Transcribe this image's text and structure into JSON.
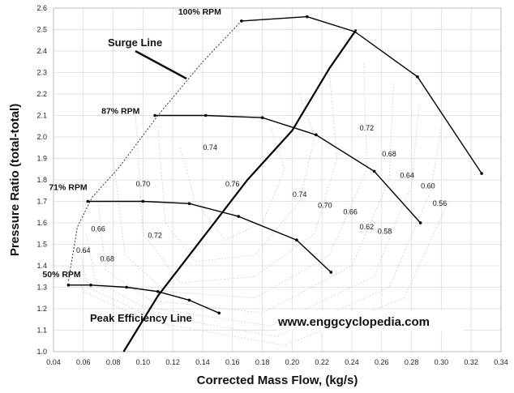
{
  "chart_data": {
    "type": "line",
    "xlabel": "Corrected Mass Flow, (kg/s)",
    "ylabel": "Pressure Ratio (total-total)",
    "xlim": [
      0.04,
      0.34
    ],
    "ylim": [
      1.0,
      2.6
    ],
    "x_ticks": [
      "0.04",
      "0.06",
      "0.08",
      "0.10",
      "0.12",
      "0.14",
      "0.16",
      "0.18",
      "0.20",
      "0.22",
      "0.24",
      "0.26",
      "0.28",
      "0.30",
      "0.32",
      "0.34"
    ],
    "y_ticks": [
      "1.0",
      "1.1",
      "1.2",
      "1.3",
      "1.4",
      "1.5",
      "1.6",
      "1.7",
      "1.8",
      "1.9",
      "2.0",
      "2.1",
      "2.2",
      "2.3",
      "2.4",
      "2.5",
      "2.6"
    ],
    "grid": true,
    "speed_lines": [
      {
        "name": "100% RPM",
        "x": [
          0.166,
          0.21,
          0.242,
          0.284,
          0.327
        ],
        "y": [
          2.54,
          2.56,
          2.49,
          2.28,
          1.83
        ]
      },
      {
        "name": "87% RPM",
        "x": [
          0.108,
          0.142,
          0.18,
          0.216,
          0.255,
          0.286
        ],
        "y": [
          2.1,
          2.1,
          2.09,
          2.01,
          1.84,
          1.6
        ]
      },
      {
        "name": "71% RPM",
        "x": [
          0.063,
          0.1,
          0.131,
          0.164,
          0.203,
          0.226
        ],
        "y": [
          1.7,
          1.7,
          1.69,
          1.63,
          1.52,
          1.37
        ]
      },
      {
        "name": "50% RPM",
        "x": [
          0.05,
          0.065,
          0.089,
          0.11,
          0.131,
          0.151
        ],
        "y": [
          1.31,
          1.31,
          1.3,
          1.28,
          1.24,
          1.18
        ]
      }
    ],
    "surge_line": {
      "x": [
        0.05,
        0.056,
        0.066,
        0.083,
        0.11,
        0.14,
        0.166
      ],
      "y": [
        1.33,
        1.58,
        1.72,
        1.85,
        2.1,
        2.35,
        2.54
      ]
    },
    "peak_efficiency_line": {
      "x": [
        0.087,
        0.11,
        0.14,
        0.17,
        0.2,
        0.225,
        0.243
      ],
      "y": [
        1.0,
        1.26,
        1.53,
        1.8,
        2.03,
        2.32,
        2.5
      ]
    },
    "efficiency_contour_labels": [
      {
        "text": "0.74",
        "x": 0.145,
        "y": 1.94
      },
      {
        "text": "0.70",
        "x": 0.1,
        "y": 1.77
      },
      {
        "text": "0.76",
        "x": 0.16,
        "y": 1.77
      },
      {
        "text": "0.74",
        "x": 0.205,
        "y": 1.72
      },
      {
        "text": "0.72",
        "x": 0.25,
        "y": 2.03
      },
      {
        "text": "0.68",
        "x": 0.265,
        "y": 1.91
      },
      {
        "text": "0.64",
        "x": 0.277,
        "y": 1.81
      },
      {
        "text": "0.60",
        "x": 0.291,
        "y": 1.76
      },
      {
        "text": "0.56",
        "x": 0.299,
        "y": 1.68
      },
      {
        "text": "0.70",
        "x": 0.222,
        "y": 1.67
      },
      {
        "text": "0.66",
        "x": 0.239,
        "y": 1.64
      },
      {
        "text": "0.62",
        "x": 0.25,
        "y": 1.57
      },
      {
        "text": "0.58",
        "x": 0.262,
        "y": 1.55
      },
      {
        "text": "0.66",
        "x": 0.07,
        "y": 1.56
      },
      {
        "text": "0.72",
        "x": 0.108,
        "y": 1.53
      },
      {
        "text": "0.64",
        "x": 0.06,
        "y": 1.46
      },
      {
        "text": "0.68",
        "x": 0.076,
        "y": 1.42
      }
    ]
  },
  "annotations": {
    "surge_line": "Surge Line",
    "peak_efficiency_line": "Peak Efficiency Line",
    "website": "www.enggcyclopedia.com"
  }
}
